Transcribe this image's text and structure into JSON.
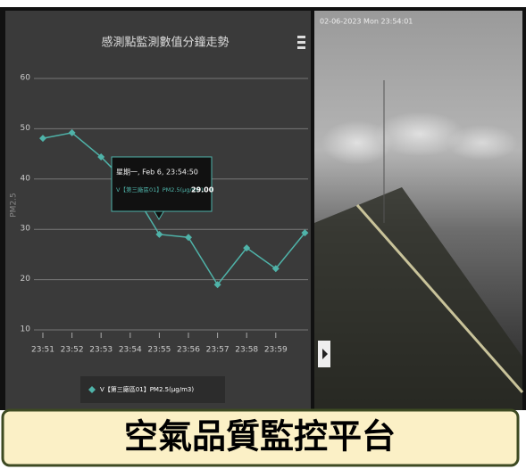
{
  "chart_data": {
    "type": "line",
    "title": "感測點監測數值分鐘走勢",
    "y_label": "PM2.5",
    "categories": [
      "23:51",
      "23:52",
      "23:53",
      "23:54",
      "23:55",
      "23:56",
      "23:57",
      "23:58",
      "23:59",
      null
    ],
    "series": [
      {
        "name": "V【第三廠區01】PM2.5(μg/m3)",
        "color": "#4fb3a9",
        "values": [
          48.1,
          49.2,
          44.4,
          38.5,
          29,
          28.4,
          19,
          26.3,
          22.2,
          29.3
        ]
      }
    ],
    "ylim": [
      10,
      60
    ],
    "yticks": [
      10,
      20,
      30,
      40,
      50,
      60
    ],
    "grid": true
  },
  "tooltip": {
    "header": "星期一, Feb 6, 23:54:50",
    "series_text": "V【第三廠區01】PM2.5(μg/m3):",
    "value_text": "29.00"
  },
  "camera": {
    "timestamp": "02-06-2023 Mon 23:54:01"
  },
  "banner": {
    "title": "空氣品質監控平台"
  }
}
